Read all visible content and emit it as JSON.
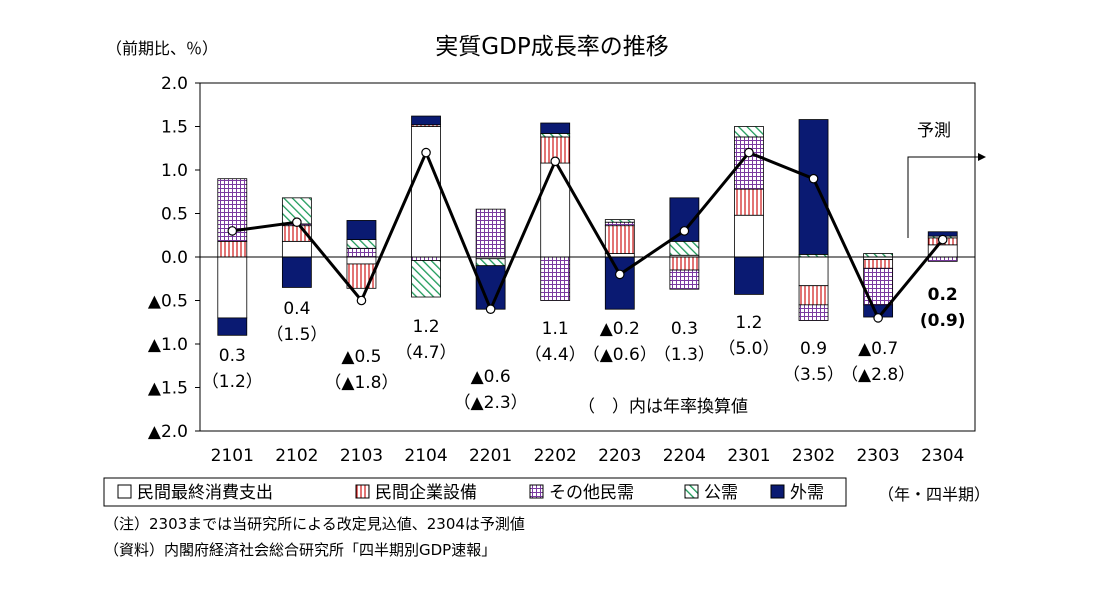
{
  "chart_data": {
    "type": "bar",
    "title": "実質GDP成長率の推移",
    "ylabel": "（前期比、％）",
    "xlabel": "（年・四半期）",
    "ylim": [
      -2.0,
      2.0
    ],
    "y_ticks": [
      2.0,
      1.5,
      1.0,
      0.5,
      0.0,
      -0.5,
      -1.0,
      -1.5,
      -2.0
    ],
    "y_tick_labels": [
      "2.0",
      "1.5",
      "1.0",
      "0.5",
      "0.0",
      "▲0.5",
      "▲1.0",
      "▲1.5",
      "▲2.0"
    ],
    "categories": [
      "2101",
      "2102",
      "2103",
      "2104",
      "2201",
      "2202",
      "2203",
      "2204",
      "2301",
      "2302",
      "2303",
      "2304"
    ],
    "series": [
      {
        "name": "民間最終消費支出",
        "pattern": "plain",
        "values": [
          -0.7,
          0.18,
          -0.08,
          1.5,
          -0.02,
          1.08,
          0.04,
          0.02,
          0.48,
          -0.33,
          -0.03,
          0.14
        ]
      },
      {
        "name": "民間企業設備",
        "pattern": "vlines",
        "values": [
          0.18,
          0.18,
          -0.28,
          0.02,
          0.0,
          0.3,
          0.32,
          -0.15,
          0.3,
          -0.22,
          -0.1,
          0.08
        ]
      },
      {
        "name": "その他民需",
        "pattern": "grid",
        "values": [
          0.72,
          0.02,
          0.1,
          -0.04,
          0.55,
          -0.5,
          0.04,
          -0.22,
          0.6,
          -0.18,
          -0.42,
          -0.05
        ]
      },
      {
        "name": "公需",
        "pattern": "diag",
        "values": [
          0.0,
          0.3,
          0.1,
          -0.42,
          -0.08,
          0.04,
          0.03,
          0.16,
          0.12,
          0.03,
          0.04,
          0.02
        ]
      },
      {
        "name": "外需",
        "pattern": "navy",
        "values": [
          -0.2,
          -0.35,
          0.22,
          0.1,
          -0.5,
          0.12,
          -0.6,
          0.5,
          -0.43,
          1.55,
          -0.14,
          0.05
        ]
      }
    ],
    "total_line": {
      "values": [
        0.3,
        0.4,
        -0.5,
        1.2,
        -0.6,
        1.1,
        -0.2,
        0.3,
        1.2,
        0.9,
        -0.7,
        0.2
      ]
    },
    "value_labels": [
      {
        "q": "0.3",
        "a": "（1.2）"
      },
      {
        "q": "0.4",
        "a": "（1.5）"
      },
      {
        "q": "▲0.5",
        "a": "（▲1.8）"
      },
      {
        "q": "1.2",
        "a": "（4.7）"
      },
      {
        "q": "▲0.6",
        "a": "（▲2.3）"
      },
      {
        "q": "1.1",
        "a": "（4.4）"
      },
      {
        "q": "▲0.2",
        "a": "（▲0.6）"
      },
      {
        "q": "0.3",
        "a": "（1.3）"
      },
      {
        "q": "1.2",
        "a": "（5.0）"
      },
      {
        "q": "0.9",
        "a": "（3.5）"
      },
      {
        "q": "▲0.7",
        "a": "（▲2.8）"
      },
      {
        "q": "0.2",
        "a": "(0.9)"
      }
    ],
    "forecast_label": "予測",
    "annual_note": "（　）内は年率換算値",
    "legend_position": "bottom",
    "grid": false
  },
  "notes": [
    "（注）2303までは当研究所による改定見込値、2304は予測値",
    "（資料）内閣府経済社会総合研究所「四半期別GDP速報」"
  ],
  "colors": {
    "navy": "#0a1a72",
    "red": "#d01818",
    "purple": "#7a3aa0",
    "green": "#1e9a5a"
  }
}
